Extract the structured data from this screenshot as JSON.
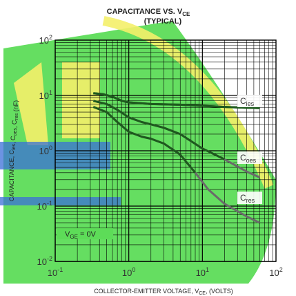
{
  "chart_data": {
    "type": "line",
    "title": "CAPACITANCE VS. V",
    "title_subscript": "CE",
    "subtitle": "(TYPICAL)",
    "xlabel": "COLLECTOR-EMITTER VOLTAGE, V",
    "xlabel_subscript": "CE",
    "xlabel_suffix": ", (VOLTS)",
    "ylabel": "CAPACITANCE, C",
    "ylabel_parts": [
      {
        "text": "CAPACITANCE, C",
        "sub": "ies"
      },
      {
        "text": ", C",
        "sub": "oes"
      },
      {
        "text": ", C",
        "sub": "res"
      },
      {
        "text": " (nF)",
        "sub": ""
      }
    ],
    "x_scale": "log",
    "y_scale": "log",
    "xlim": [
      0.1,
      100
    ],
    "ylim": [
      0.01,
      100
    ],
    "x_ticks": [
      {
        "value": 0.1,
        "base": "10",
        "exp": "-1"
      },
      {
        "value": 1,
        "base": "10",
        "exp": "0"
      },
      {
        "value": 10,
        "base": "10",
        "exp": "1"
      },
      {
        "value": 100,
        "base": "10",
        "exp": "2"
      }
    ],
    "y_ticks": [
      {
        "value": 0.01,
        "base": "10",
        "exp": "-2"
      },
      {
        "value": 0.1,
        "base": "10",
        "exp": "-1"
      },
      {
        "value": 1,
        "base": "10",
        "exp": "0"
      },
      {
        "value": 10,
        "base": "10",
        "exp": "1"
      },
      {
        "value": 100,
        "base": "10",
        "exp": "2"
      }
    ],
    "grid": true,
    "annotation": {
      "text": "V",
      "sub": "GE",
      "suffix": " = 0V"
    },
    "series": [
      {
        "name": "C",
        "name_sub": "ies",
        "color": "#1e5a1e",
        "x": [
          0.33,
          0.45,
          0.6,
          0.8,
          1.0,
          2.0,
          5.0,
          10,
          20,
          40,
          60
        ],
        "y": [
          11,
          10.5,
          9.5,
          8.0,
          7.5,
          7.0,
          6.8,
          6.5,
          6.2,
          6.0,
          5.9
        ]
      },
      {
        "name": "C",
        "name_sub": "oes",
        "color": "#1e5a1e",
        "x": [
          0.33,
          0.5,
          0.7,
          1.0,
          1.5,
          2.0,
          3.0,
          5.0,
          10,
          20,
          40,
          60
        ],
        "y": [
          8.0,
          7.0,
          5.5,
          4.0,
          3.3,
          3.0,
          2.6,
          2.0,
          1.1,
          0.7,
          0.42,
          0.33
        ]
      },
      {
        "name": "C",
        "name_sub": "res",
        "color": "#1e5a1e",
        "x": [
          0.33,
          0.5,
          0.7,
          1.0,
          1.5,
          2.0,
          3.0,
          5.0,
          8.0,
          12,
          20,
          40,
          60
        ],
        "y": [
          6.2,
          5.0,
          3.3,
          2.2,
          1.8,
          1.65,
          1.35,
          0.85,
          0.4,
          0.2,
          0.11,
          0.065,
          0.05
        ]
      }
    ]
  },
  "colors": {
    "grid": "#000000",
    "curve": "#1e5a1e",
    "curve_faded": "#6a6a6a",
    "watermark_green": "#5ddc58",
    "watermark_yellow": "#f4f06a",
    "watermark_blue": "#3b6fd8"
  }
}
